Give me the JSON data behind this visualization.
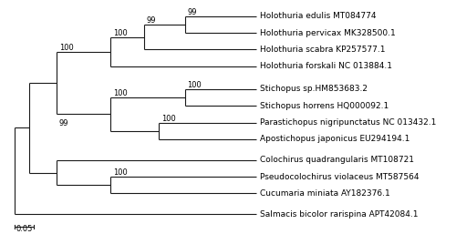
{
  "taxa": [
    "Holothuria edulis MT084774",
    "Holothuria pervicax MK328500.1",
    "Holothuria scabra KP257577.1",
    "Holothuria forskali NC 013884.1",
    "Stichopus sp.HM853683.2",
    "Stichopus horrens HQ000092.1",
    "Parastichopus nigripunctatus NC 013432.1",
    "Apostichopus japonicus EU294194.1",
    "Colochirus quadrangularis MT108721",
    "Pseudocolochirus violaceus MT587564",
    "Cucumaria miniata AY182376.1",
    "Salmacis bicolor rarispina APT42084.1"
  ],
  "line_color": "#1a1a1a",
  "font_size": 6.5,
  "bootstrap_font_size": 6.0,
  "fig_width": 5.0,
  "fig_height": 2.57,
  "dpi": 100
}
